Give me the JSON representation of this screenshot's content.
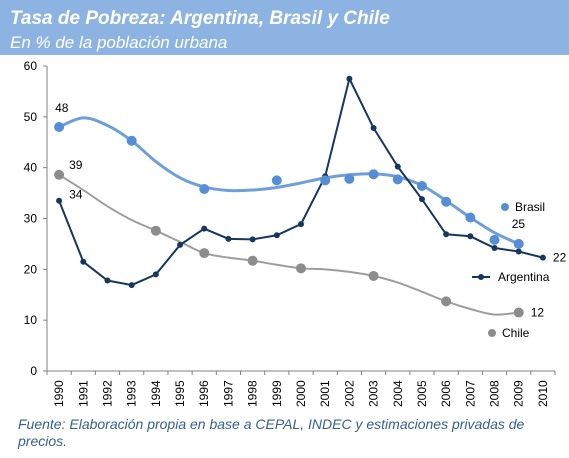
{
  "header": {
    "title": "Tasa de Pobreza: Argentina, Brasil y Chile",
    "subtitle": "En % de la población urbana"
  },
  "source": "Fuente: Elaboración propia en base a CEPAL, INDEC y estimaciones privadas de precios.",
  "chart_data": {
    "type": "line",
    "x": [
      "1990",
      "1991",
      "1992",
      "1993",
      "1994",
      "1995",
      "1996",
      "1997",
      "1998",
      "1999",
      "2000",
      "2001",
      "2002",
      "2003",
      "2004",
      "2005",
      "2006",
      "2007",
      "2008",
      "2009",
      "2010"
    ],
    "ylim": [
      0,
      60
    ],
    "yticks": [
      0,
      10,
      20,
      30,
      40,
      50,
      60
    ],
    "grid": false,
    "series": [
      {
        "name": "Argentina",
        "style": "line-markers",
        "color": "#17375e",
        "values": [
          33.5,
          21.5,
          17.8,
          16.9,
          19.0,
          24.8,
          28.0,
          26.0,
          25.9,
          26.7,
          28.9,
          38.3,
          57.5,
          47.8,
          40.2,
          33.8,
          26.9,
          26.5,
          24.2,
          23.5,
          22.3
        ],
        "point_labels": [
          {
            "index": 0,
            "text": "34"
          },
          {
            "index": 20,
            "text": "22"
          }
        ]
      },
      {
        "name": "Brasil",
        "style": "points",
        "color": "#558ed5",
        "values": [
          48.0,
          null,
          null,
          45.3,
          null,
          null,
          35.8,
          null,
          null,
          37.5,
          null,
          37.5,
          37.8,
          38.7,
          37.7,
          36.4,
          33.3,
          30.2,
          25.8,
          25.0,
          null
        ],
        "trend": [
          48.0,
          49.8,
          48.3,
          45.3,
          41.2,
          38.0,
          36.2,
          35.5,
          35.6,
          36.1,
          37.0,
          38.0,
          38.6,
          38.8,
          38.2,
          36.5,
          33.5,
          30.2,
          27.2,
          25.0,
          null
        ],
        "point_labels": [
          {
            "index": 0,
            "text": "48"
          },
          {
            "index": 19,
            "text": "25"
          }
        ]
      },
      {
        "name": "Chile",
        "style": "points",
        "color": "#8c8c8c",
        "values": [
          38.6,
          null,
          null,
          null,
          27.6,
          null,
          23.2,
          null,
          21.7,
          null,
          20.2,
          null,
          null,
          18.7,
          null,
          null,
          13.7,
          null,
          null,
          11.5,
          null
        ],
        "trend": [
          38.6,
          35.6,
          32.4,
          29.7,
          27.6,
          25.4,
          23.2,
          22.3,
          21.7,
          20.9,
          20.2,
          20.0,
          19.5,
          18.7,
          17.4,
          15.6,
          13.7,
          12.2,
          11.1,
          11.5,
          null
        ],
        "point_labels": [
          {
            "index": 0,
            "text": "39"
          },
          {
            "index": 19,
            "text": "12"
          }
        ]
      }
    ],
    "legend_position": "right, next to each series"
  }
}
